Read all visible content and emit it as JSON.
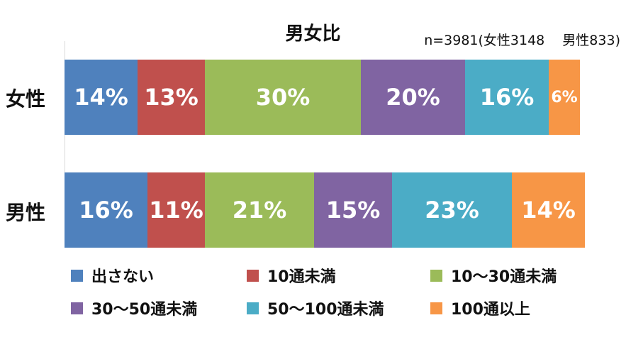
{
  "chart_data": {
    "type": "bar",
    "orientation": "horizontal",
    "stacked": true,
    "title": "男女比",
    "note": "n=3981(女性3148　 男性833)",
    "categories": [
      "女性",
      "男性"
    ],
    "series": [
      {
        "name": "出さない",
        "color": "#4F81BD",
        "values": [
          14,
          16
        ],
        "labels": [
          "14%",
          "16%"
        ]
      },
      {
        "name": "10通未満",
        "color": "#C0504D",
        "values": [
          13,
          11
        ],
        "labels": [
          "13%",
          "11%"
        ]
      },
      {
        "name": "10～30通未満",
        "color": "#9BBB59",
        "values": [
          30,
          21
        ],
        "labels": [
          "30%",
          "21%"
        ]
      },
      {
        "name": "30～50通未満",
        "color": "#8064A2",
        "values": [
          20,
          15
        ],
        "labels": [
          "20%",
          "15%"
        ]
      },
      {
        "name": "50～100通未満",
        "color": "#4BACC6",
        "values": [
          16,
          23
        ],
        "labels": [
          "16%",
          "23%"
        ]
      },
      {
        "name": "100通以上",
        "color": "#F79646",
        "values": [
          6,
          14
        ],
        "labels": [
          "6%",
          "14%"
        ]
      }
    ],
    "xlim": [
      0,
      100
    ],
    "grid": false,
    "legend_position": "bottom"
  }
}
